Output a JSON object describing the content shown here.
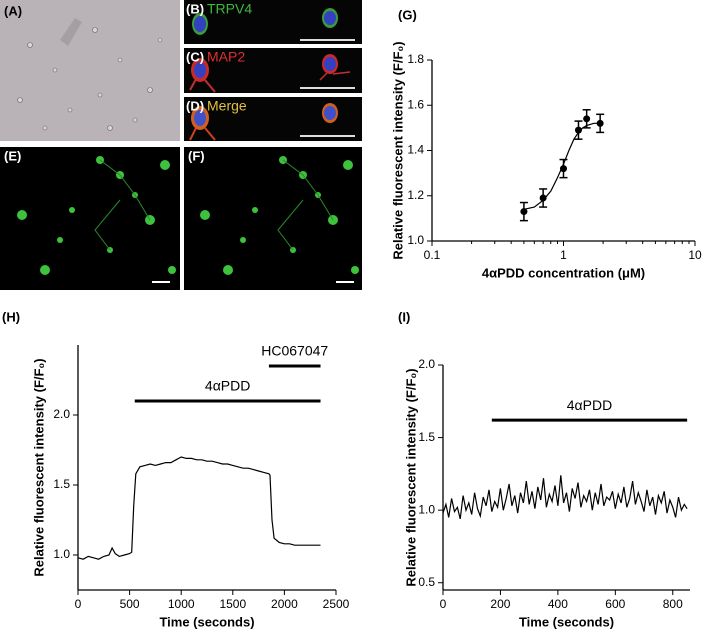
{
  "panels": [
    {
      "label": "(A)"
    },
    {
      "label": "(B)",
      "stain": "TRPV4"
    },
    {
      "label": "(C)",
      "stain": "MAP2"
    },
    {
      "label": "(D)",
      "stain": "Merge"
    },
    {
      "label": "(E)"
    },
    {
      "label": "(F)"
    }
  ],
  "chart_data": [
    {
      "type": "scatter",
      "label": "(G)",
      "x_label": "4αPDD concentration (μM)",
      "y_label": "Relative fluorescent intensity (F/F₀)",
      "xscale": "log",
      "xlim": [
        0.1,
        10
      ],
      "xticks": [
        0.1,
        1,
        10
      ],
      "ylim": [
        1.0,
        1.8
      ],
      "yticks": [
        {
          "value": 1.0,
          "label": "1.0"
        },
        1.2,
        1.4,
        1.6,
        {
          "value": 1.8,
          "label": "1.8"
        }
      ],
      "series": [
        {
          "color": "#000000",
          "marker": "circle",
          "x": [
            0.5,
            0.7,
            1.0,
            1.3,
            1.5,
            1.9
          ],
          "values": [
            1.13,
            1.19,
            1.32,
            1.49,
            1.54,
            1.52
          ],
          "errors": [
            0.04,
            0.04,
            0.04,
            0.04,
            0.04,
            0.04
          ]
        },
        {
          "color": "#000000",
          "marker": "none",
          "x": [
            0.5,
            0.6,
            0.7,
            0.8,
            0.9,
            1.0,
            1.1,
            1.2,
            1.3,
            1.4,
            1.5,
            1.7,
            1.9
          ],
          "values": [
            1.14,
            1.15,
            1.18,
            1.22,
            1.28,
            1.34,
            1.4,
            1.45,
            1.48,
            1.5,
            1.51,
            1.52,
            1.52
          ]
        }
      ]
    },
    {
      "type": "line",
      "label": "(H)",
      "x_label": "Time (seconds)",
      "y_label": "Relative fluorescent intensity (F/F₀)",
      "xlim": [
        0,
        2500
      ],
      "xticks": [
        0,
        500,
        1000,
        1500,
        2000,
        2500
      ],
      "ylim": [
        0.75,
        2.5
      ],
      "yticks": [
        {
          "value": 1.0,
          "label": "1.0"
        },
        1.5,
        {
          "value": 2.0,
          "label": "2.0"
        }
      ],
      "annotations": [
        {
          "text": "4αPDD",
          "x": [
            550,
            2350
          ],
          "y": 2.1
        },
        {
          "text": "HC067047",
          "x": [
            1850,
            2350
          ],
          "y": 2.35
        }
      ],
      "series": [
        {
          "color": "#000000",
          "x": [
            0,
            50,
            100,
            150,
            200,
            250,
            300,
            330,
            360,
            400,
            450,
            500,
            520,
            540,
            560,
            600,
            650,
            700,
            750,
            800,
            850,
            900,
            950,
            1000,
            1050,
            1100,
            1150,
            1200,
            1250,
            1300,
            1350,
            1400,
            1450,
            1500,
            1550,
            1600,
            1650,
            1700,
            1750,
            1800,
            1850,
            1860,
            1880,
            1900,
            1950,
            2000,
            2050,
            2100,
            2150,
            2200,
            2250,
            2300,
            2350
          ],
          "values": [
            0.98,
            0.97,
            0.99,
            0.98,
            0.97,
            0.99,
            1.0,
            1.05,
            1.01,
            0.99,
            1.0,
            1.01,
            1.02,
            1.35,
            1.58,
            1.63,
            1.64,
            1.65,
            1.64,
            1.65,
            1.66,
            1.66,
            1.68,
            1.7,
            1.69,
            1.69,
            1.68,
            1.68,
            1.67,
            1.67,
            1.66,
            1.65,
            1.65,
            1.64,
            1.63,
            1.62,
            1.62,
            1.61,
            1.6,
            1.59,
            1.58,
            1.57,
            1.25,
            1.12,
            1.09,
            1.08,
            1.08,
            1.07,
            1.07,
            1.07,
            1.07,
            1.07,
            1.07
          ]
        }
      ]
    },
    {
      "type": "line",
      "label": "(I)",
      "x_label": "Time (seconds)",
      "y_label": "Relative fluorescent intensity (F/F₀)",
      "xlim": [
        0,
        860
      ],
      "xticks": [
        0,
        200,
        400,
        600,
        800
      ],
      "ylim": [
        0.45,
        2.0
      ],
      "yticks": [
        0.5,
        {
          "value": 1.0,
          "label": "1.0"
        },
        1.5,
        {
          "value": 2.0,
          "label": "2.0"
        }
      ],
      "annotations": [
        {
          "text": "4αPDD",
          "x": [
            170,
            850
          ],
          "y": 1.62
        }
      ],
      "series": [
        {
          "color": "#000000",
          "x": [
            0,
            10,
            20,
            30,
            40,
            50,
            60,
            70,
            80,
            90,
            100,
            110,
            120,
            130,
            140,
            150,
            160,
            170,
            180,
            190,
            200,
            210,
            220,
            230,
            240,
            250,
            260,
            270,
            280,
            290,
            300,
            310,
            320,
            330,
            340,
            350,
            360,
            370,
            380,
            390,
            400,
            410,
            420,
            430,
            440,
            450,
            460,
            470,
            480,
            490,
            500,
            510,
            520,
            530,
            540,
            550,
            560,
            570,
            580,
            590,
            600,
            610,
            620,
            630,
            640,
            650,
            660,
            670,
            680,
            690,
            700,
            710,
            720,
            730,
            740,
            750,
            760,
            770,
            780,
            790,
            800,
            810,
            820,
            830,
            840,
            850
          ],
          "values": [
            0.98,
            1.04,
            0.95,
            1.08,
            0.99,
            1.02,
            0.94,
            1.1,
            1.0,
            1.05,
            0.97,
            1.12,
            1.01,
            0.96,
            1.09,
            1.03,
            1.14,
            0.99,
            1.06,
            1.02,
            1.15,
            1.0,
            1.08,
            1.18,
            1.03,
            1.1,
            0.98,
            1.12,
            1.05,
            1.2,
            1.04,
            1.13,
            1.01,
            1.16,
            1.07,
            1.22,
            1.02,
            1.11,
            1.06,
            1.17,
            1.03,
            1.24,
            1.05,
            1.12,
            0.99,
            1.15,
            1.08,
            1.19,
            1.02,
            1.1,
            1.06,
            1.14,
            1.0,
            1.12,
            1.04,
            1.18,
            1.03,
            1.09,
            1.07,
            1.13,
            1.01,
            1.11,
            1.05,
            1.16,
            1.02,
            1.08,
            1.2,
            1.04,
            1.12,
            1.06,
            0.99,
            1.14,
            1.03,
            1.09,
            0.97,
            1.1,
            1.05,
            1.13,
            0.98,
            1.07,
            1.02,
            0.95,
            1.09,
            1.0,
            1.04,
            1.01
          ]
        }
      ]
    }
  ]
}
